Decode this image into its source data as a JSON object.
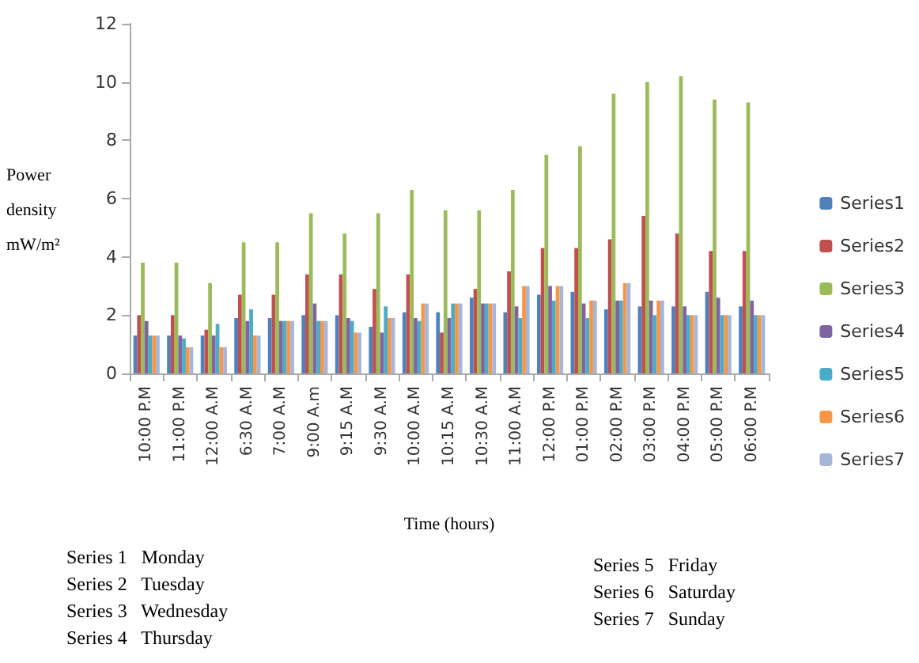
{
  "chart_data": {
    "type": "bar",
    "xlabel": "Time (hours)",
    "ylabel": "Power density mW/m²",
    "categories": [
      "10:00 P.M",
      "11:00 P.M",
      "12:00 A.M",
      "6:30 A.M",
      "7:00 A.M",
      "9:00 A.m",
      "9:15 A.M",
      "9:30 A.M",
      "10:00 A.M",
      "10:15 A.M",
      "10:30 A.M",
      "11:00 A.M",
      "12:00 P.M",
      "01:00 P.M",
      "02:00 P.M",
      "03:00 P.M",
      "04:00 P.M",
      "05:00 P.M",
      "06:00 P.M"
    ],
    "series": [
      {
        "name": "Series1",
        "color": "#4f81bd",
        "values": [
          1.3,
          1.3,
          1.3,
          1.9,
          1.9,
          2.0,
          2.0,
          1.6,
          2.1,
          2.1,
          2.6,
          2.1,
          2.7,
          2.8,
          2.2,
          2.3,
          2.3,
          2.8,
          2.3
        ]
      },
      {
        "name": "Series2",
        "color": "#c0504d",
        "values": [
          2.0,
          2.0,
          1.5,
          2.7,
          2.7,
          3.4,
          3.4,
          2.9,
          3.4,
          1.4,
          2.9,
          3.5,
          4.3,
          4.3,
          4.6,
          5.4,
          4.8,
          4.2,
          4.2
        ]
      },
      {
        "name": "Series3",
        "color": "#9bbb59",
        "values": [
          3.8,
          3.8,
          3.1,
          4.5,
          4.5,
          5.5,
          4.8,
          5.5,
          6.3,
          5.6,
          5.6,
          6.3,
          7.5,
          7.8,
          9.6,
          10.0,
          10.2,
          9.4,
          9.3
        ]
      },
      {
        "name": "Series4",
        "color": "#8064a2",
        "values": [
          1.8,
          1.3,
          1.3,
          1.8,
          1.8,
          2.4,
          1.9,
          1.4,
          1.9,
          1.9,
          2.4,
          2.3,
          3.0,
          2.4,
          2.5,
          2.5,
          2.3,
          2.6,
          2.5
        ]
      },
      {
        "name": "Series5",
        "color": "#4bacc6",
        "values": [
          1.3,
          1.2,
          1.7,
          2.2,
          1.8,
          1.8,
          1.8,
          2.3,
          1.8,
          2.4,
          2.4,
          1.9,
          2.5,
          1.9,
          2.5,
          2.0,
          2.0,
          2.0,
          2.0
        ]
      },
      {
        "name": "Series6",
        "color": "#f79646",
        "values": [
          1.3,
          0.9,
          0.9,
          1.3,
          1.8,
          1.8,
          1.4,
          1.9,
          2.4,
          2.4,
          2.4,
          3.0,
          3.0,
          2.5,
          3.1,
          2.5,
          2.0,
          2.0,
          2.0
        ]
      },
      {
        "name": "Series7",
        "color": "#a5b6d9",
        "values": [
          1.3,
          0.9,
          0.9,
          1.3,
          1.8,
          1.8,
          1.4,
          1.9,
          2.4,
          2.4,
          2.4,
          3.0,
          3.0,
          2.5,
          3.1,
          2.5,
          2.0,
          2.0,
          2.0
        ]
      }
    ],
    "ylim": [
      0,
      12
    ],
    "yticks": [
      0,
      2,
      4,
      6,
      8,
      10,
      12
    ],
    "grid": false,
    "legend": "right",
    "annotations": [
      "Series 1   Monday",
      "Series 2   Tuesday",
      "Series 3   Wednesday",
      "Series 4   Thursday",
      "Series 5   Friday",
      "Series 6   Saturday",
      "Series 7   Sunday"
    ]
  }
}
